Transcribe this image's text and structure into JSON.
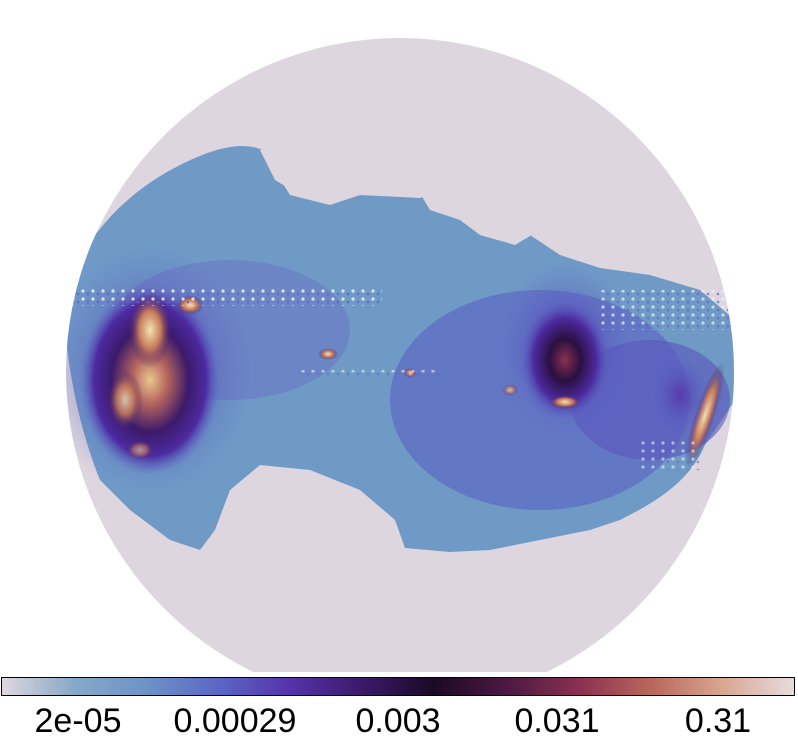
{
  "colorbar": {
    "tick_labels": [
      "2e-05",
      "0.00029",
      "0.003",
      "0.031",
      "0.31"
    ],
    "scale": "logarithmic",
    "stops": [
      "#ded7df",
      "#86a9c7",
      "#6e93c7",
      "#5b67c6",
      "#5533aa",
      "#3b1a6a",
      "#1b0a26",
      "#4b1843",
      "#8a3050",
      "#b9665c",
      "#d9a690",
      "#e6dcdf"
    ]
  },
  "map": {
    "projection": "orthographic-disk",
    "background_color": "#ddd6df",
    "band_color": "#6f9ac6"
  }
}
